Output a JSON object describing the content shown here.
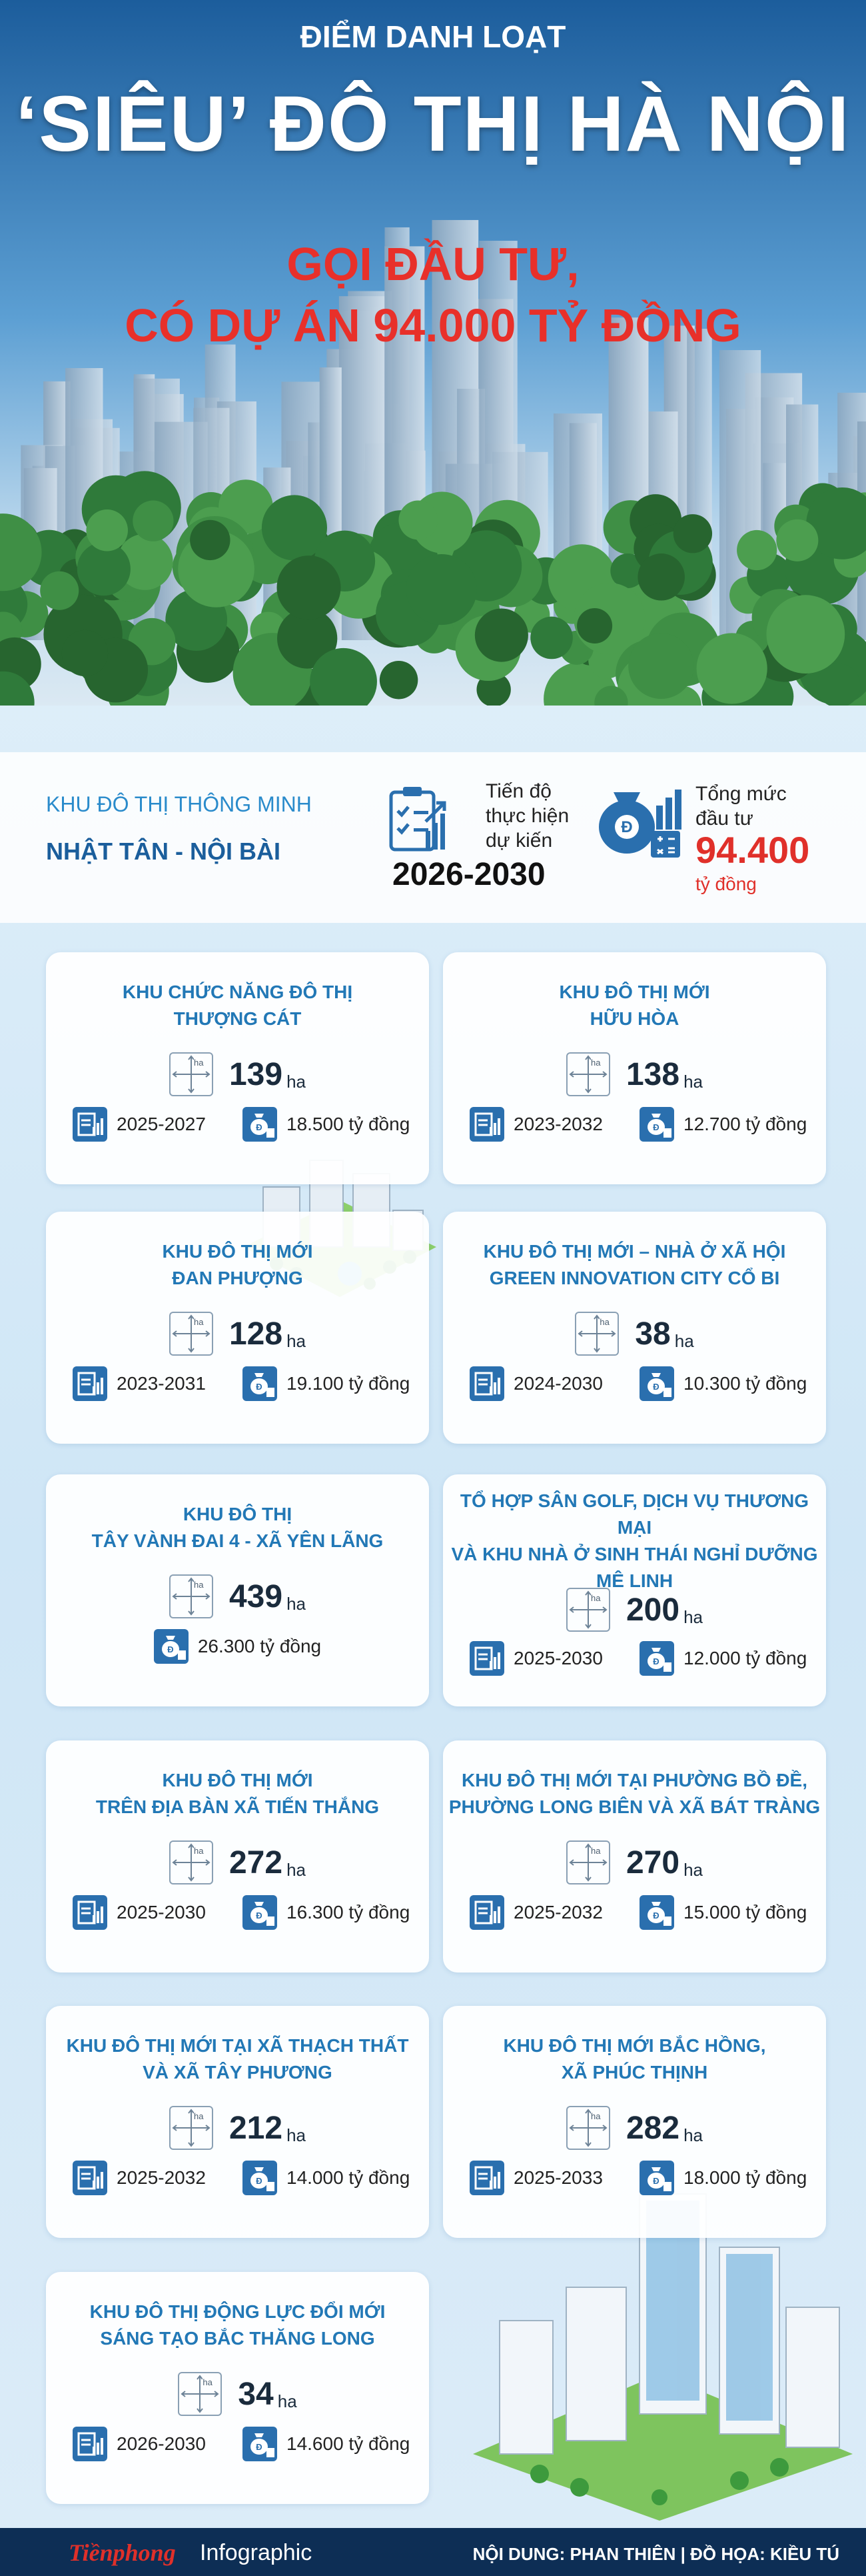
{
  "header": {
    "kicker": "ĐIỂM DANH LOẠT",
    "title": "‘SIÊU’ ĐÔ THỊ HÀ NỘI",
    "subtitle": [
      "GỌI ĐẦU TƯ,",
      "CÓ DỰ ÁN 94.000 TỶ ĐỒNG"
    ]
  },
  "featured": {
    "label": "KHU ĐÔ THỊ THÔNG MINH",
    "name": "NHẬT TÂN - NỘI BÀI",
    "schedule_label": [
      "Tiến độ",
      "thực hiện",
      "dự kiến"
    ],
    "schedule": "2026-2030",
    "investment_label": [
      "Tổng mức",
      "đầu tư"
    ],
    "investment": "94.400",
    "investment_unit": "tỷ đồng"
  },
  "area_unit": "ha",
  "projects": [
    {
      "name": [
        "KHU CHỨC NĂNG ĐÔ THỊ",
        "THƯỢNG CÁT"
      ],
      "area": 139,
      "period": "2025-2027",
      "investment": "18.500 tỷ đồng"
    },
    {
      "name": [
        "KHU ĐÔ THỊ MỚI",
        "HỮU HÒA"
      ],
      "area": 138,
      "period": "2023-2032",
      "investment": "12.700 tỷ đồng"
    },
    {
      "name": [
        "KHU ĐÔ THỊ MỚI",
        "ĐAN PHƯỢNG"
      ],
      "area": 128,
      "period": "2023-2031",
      "investment": "19.100 tỷ đồng"
    },
    {
      "name": [
        "KHU ĐÔ THỊ MỚI – NHÀ Ở XÃ HỘI",
        "GREEN INNOVATION CITY CỔ BI"
      ],
      "area": 38,
      "period": "2024-2030",
      "investment": "10.300 tỷ đồng"
    },
    {
      "name": [
        "KHU ĐÔ THỊ",
        "TÂY VÀNH ĐAI 4 - XÃ YÊN LÃNG"
      ],
      "area": 439,
      "investment": "26.300 tỷ đồng"
    },
    {
      "name": [
        "TỔ HỢP SÂN GOLF, DỊCH VỤ THƯƠNG MẠI",
        "VÀ KHU NHÀ Ở SINH THÁI NGHỈ DƯỠNG",
        "MÊ LINH"
      ],
      "area": 200,
      "period": "2025-2030",
      "investment": "12.000 tỷ đồng"
    },
    {
      "name": [
        "KHU ĐÔ THỊ MỚI",
        "TRÊN ĐỊA BÀN XÃ TIẾN THẮNG"
      ],
      "area": 272,
      "period": "2025-2030",
      "investment": "16.300 tỷ đồng"
    },
    {
      "name": [
        "KHU ĐÔ THỊ MỚI TẠI PHƯỜNG BỒ ĐỀ,",
        "PHƯỜNG LONG BIÊN VÀ XÃ BÁT TRÀNG"
      ],
      "area": 270,
      "period": "2025-2032",
      "investment": "15.000 tỷ đồng"
    },
    {
      "name": [
        "KHU ĐÔ THỊ MỚI TẠI XÃ THẠCH THẤT",
        "VÀ XÃ TÂY PHƯƠNG"
      ],
      "area": 212,
      "period": "2025-2032",
      "investment": "14.000 tỷ đồng"
    },
    {
      "name": [
        "KHU ĐÔ THỊ MỚI BẮC HỒNG,",
        "XÃ PHÚC THỊNH"
      ],
      "area": 282,
      "period": "2025-2033",
      "investment": "18.000 tỷ đồng"
    },
    {
      "name": [
        "KHU ĐÔ THỊ ĐỘNG LỰC ĐỔI MỚI",
        "SÁNG TẠO BẮC THĂNG LONG"
      ],
      "area": 34,
      "period": "2026-2030",
      "investment": "14.600 tỷ đồng"
    }
  ],
  "footer": {
    "brand": "Tiềnphong",
    "section": "Infographic",
    "credits": "NỘI DUNG: PHAN THIÊN | ĐỒ HỌA: KIỀU TÚ"
  }
}
